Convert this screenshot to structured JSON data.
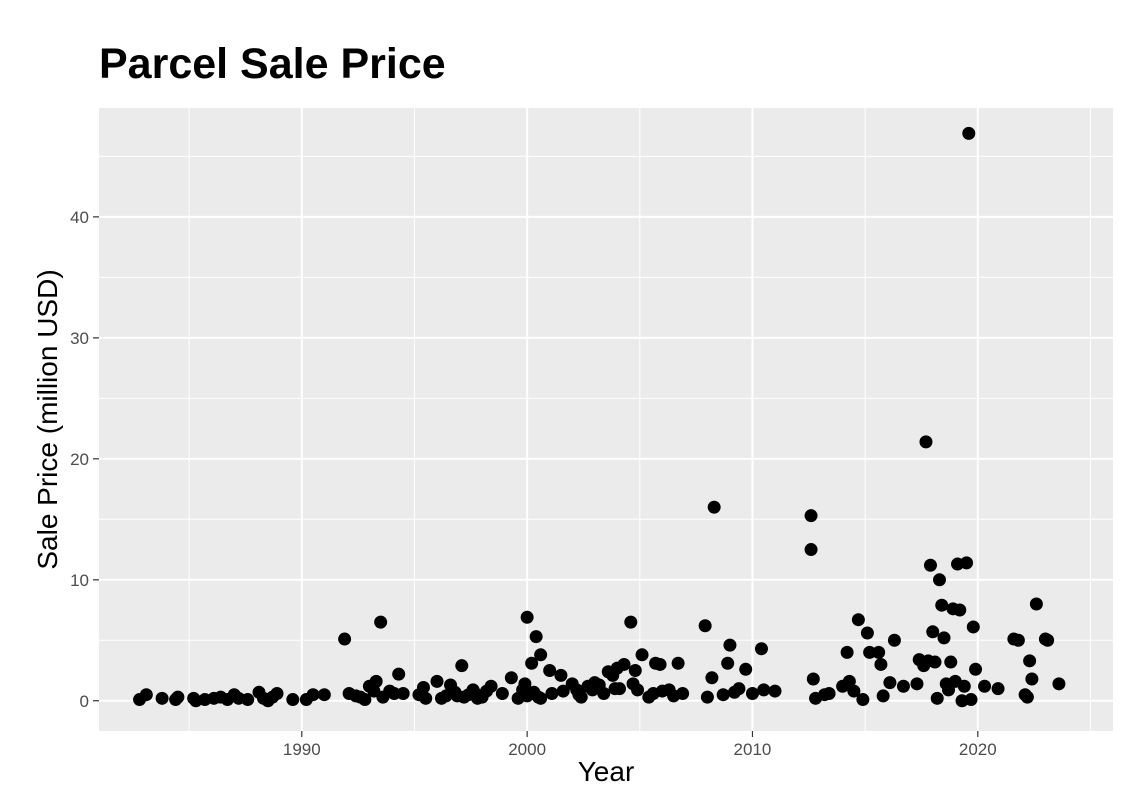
{
  "chart_data": {
    "type": "scatter",
    "title": "Parcel Sale Price",
    "xlabel": "Year",
    "ylabel": "Sale Price (million USD)",
    "xlim": [
      1981,
      2026
    ],
    "ylim": [
      -2.5,
      49
    ],
    "x_ticks": [
      1990,
      2000,
      2010,
      2020
    ],
    "y_ticks": [
      0,
      10,
      20,
      30,
      40
    ],
    "grid": true,
    "legend": "none",
    "point_color": "#000000",
    "panel_color": "#ebebeb",
    "grid_color": "#ffffff",
    "points": [
      {
        "x": 1982.8,
        "y": 0.1
      },
      {
        "x": 1983.1,
        "y": 0.5
      },
      {
        "x": 1983.8,
        "y": 0.2
      },
      {
        "x": 1984.4,
        "y": 0.1
      },
      {
        "x": 1984.5,
        "y": 0.3
      },
      {
        "x": 1985.2,
        "y": 0.2
      },
      {
        "x": 1985.3,
        "y": 0
      },
      {
        "x": 1985.7,
        "y": 0.1
      },
      {
        "x": 1986.1,
        "y": 0.2
      },
      {
        "x": 1986.4,
        "y": 0.3
      },
      {
        "x": 1986.7,
        "y": 0.1
      },
      {
        "x": 1987,
        "y": 0.5
      },
      {
        "x": 1987.2,
        "y": 0.2
      },
      {
        "x": 1987.6,
        "y": 0.1
      },
      {
        "x": 1988.1,
        "y": 0.7
      },
      {
        "x": 1988.3,
        "y": 0.2
      },
      {
        "x": 1988.5,
        "y": 0
      },
      {
        "x": 1988.7,
        "y": 0.3
      },
      {
        "x": 1988.9,
        "y": 0.6
      },
      {
        "x": 1989.6,
        "y": 0.1
      },
      {
        "x": 1990.2,
        "y": 0.1
      },
      {
        "x": 1990.5,
        "y": 0.5
      },
      {
        "x": 1991,
        "y": 0.5
      },
      {
        "x": 1991.9,
        "y": 5.1
      },
      {
        "x": 1992.1,
        "y": 0.6
      },
      {
        "x": 1992.4,
        "y": 0.4
      },
      {
        "x": 1992.6,
        "y": 0.3
      },
      {
        "x": 1992.8,
        "y": 0.1
      },
      {
        "x": 1993,
        "y": 1.2
      },
      {
        "x": 1993.2,
        "y": 0.8
      },
      {
        "x": 1993.3,
        "y": 1.6
      },
      {
        "x": 1993.5,
        "y": 6.5
      },
      {
        "x": 1993.6,
        "y": 0.3
      },
      {
        "x": 1993.9,
        "y": 0.8
      },
      {
        "x": 1994.1,
        "y": 0.6
      },
      {
        "x": 1994.3,
        "y": 2.2
      },
      {
        "x": 1994.5,
        "y": 0.6
      },
      {
        "x": 1995.2,
        "y": 0.5
      },
      {
        "x": 1995.4,
        "y": 1.1
      },
      {
        "x": 1995.5,
        "y": 0.2
      },
      {
        "x": 1996,
        "y": 1.6
      },
      {
        "x": 1996.2,
        "y": 0.2
      },
      {
        "x": 1996.4,
        "y": 0.4
      },
      {
        "x": 1996.6,
        "y": 1.3
      },
      {
        "x": 1996.8,
        "y": 0.7
      },
      {
        "x": 1996.9,
        "y": 0.4
      },
      {
        "x": 1997.1,
        "y": 2.9
      },
      {
        "x": 1997.2,
        "y": 0.3
      },
      {
        "x": 1997.4,
        "y": 0.5
      },
      {
        "x": 1997.6,
        "y": 0.9
      },
      {
        "x": 1997.7,
        "y": 0.6
      },
      {
        "x": 1997.8,
        "y": 0.2
      },
      {
        "x": 1998,
        "y": 0.3
      },
      {
        "x": 1998.2,
        "y": 0.8
      },
      {
        "x": 1998.4,
        "y": 1.2
      },
      {
        "x": 1998.9,
        "y": 0.6
      },
      {
        "x": 1999.3,
        "y": 1.9
      },
      {
        "x": 1999.6,
        "y": 0.2
      },
      {
        "x": 1999.8,
        "y": 0.9
      },
      {
        "x": 1999.9,
        "y": 1.4
      },
      {
        "x": 2000,
        "y": 0.4
      },
      {
        "x": 2000,
        "y": 6.9
      },
      {
        "x": 2000.2,
        "y": 3.1
      },
      {
        "x": 2000.3,
        "y": 0.7
      },
      {
        "x": 2000.4,
        "y": 5.3
      },
      {
        "x": 2000.5,
        "y": 0.3
      },
      {
        "x": 2000.6,
        "y": 0.2
      },
      {
        "x": 2000.6,
        "y": 3.8
      },
      {
        "x": 2001,
        "y": 2.5
      },
      {
        "x": 2001.1,
        "y": 0.6
      },
      {
        "x": 2001.5,
        "y": 2.1
      },
      {
        "x": 2001.6,
        "y": 0.8
      },
      {
        "x": 2002,
        "y": 1.4
      },
      {
        "x": 2002.2,
        "y": 0.9
      },
      {
        "x": 2002.3,
        "y": 0.5
      },
      {
        "x": 2002.4,
        "y": 0.3
      },
      {
        "x": 2002.7,
        "y": 1.2
      },
      {
        "x": 2002.9,
        "y": 0.9
      },
      {
        "x": 2003,
        "y": 1.5
      },
      {
        "x": 2003.2,
        "y": 1.3
      },
      {
        "x": 2003.4,
        "y": 0.6
      },
      {
        "x": 2003.6,
        "y": 2.4
      },
      {
        "x": 2003.8,
        "y": 2.1
      },
      {
        "x": 2003.9,
        "y": 1
      },
      {
        "x": 2004,
        "y": 2.7
      },
      {
        "x": 2004.1,
        "y": 1
      },
      {
        "x": 2004.3,
        "y": 3
      },
      {
        "x": 2004.6,
        "y": 6.5
      },
      {
        "x": 2004.7,
        "y": 1.4
      },
      {
        "x": 2004.8,
        "y": 2.5
      },
      {
        "x": 2004.9,
        "y": 0.9
      },
      {
        "x": 2005.1,
        "y": 3.8
      },
      {
        "x": 2005.4,
        "y": 0.3
      },
      {
        "x": 2005.6,
        "y": 0.6
      },
      {
        "x": 2005.7,
        "y": 3.1
      },
      {
        "x": 2005.9,
        "y": 3
      },
      {
        "x": 2006,
        "y": 0.8
      },
      {
        "x": 2006.3,
        "y": 0.9
      },
      {
        "x": 2006.5,
        "y": 0.4
      },
      {
        "x": 2006.7,
        "y": 3.1
      },
      {
        "x": 2006.9,
        "y": 0.6
      },
      {
        "x": 2007.9,
        "y": 6.2
      },
      {
        "x": 2008,
        "y": 0.3
      },
      {
        "x": 2008.2,
        "y": 1.9
      },
      {
        "x": 2008.3,
        "y": 16
      },
      {
        "x": 2008.7,
        "y": 0.5
      },
      {
        "x": 2008.9,
        "y": 3.1
      },
      {
        "x": 2009,
        "y": 4.6
      },
      {
        "x": 2009.2,
        "y": 0.7
      },
      {
        "x": 2009.4,
        "y": 1
      },
      {
        "x": 2009.7,
        "y": 2.6
      },
      {
        "x": 2010,
        "y": 0.6
      },
      {
        "x": 2010.4,
        "y": 4.3
      },
      {
        "x": 2010.5,
        "y": 0.9
      },
      {
        "x": 2011,
        "y": 0.8
      },
      {
        "x": 2012.6,
        "y": 15.3
      },
      {
        "x": 2012.6,
        "y": 12.5
      },
      {
        "x": 2012.7,
        "y": 1.8
      },
      {
        "x": 2012.8,
        "y": 0.2
      },
      {
        "x": 2013.2,
        "y": 0.5
      },
      {
        "x": 2013.4,
        "y": 0.6
      },
      {
        "x": 2014,
        "y": 1.2
      },
      {
        "x": 2014.2,
        "y": 4
      },
      {
        "x": 2014.3,
        "y": 1.6
      },
      {
        "x": 2014.5,
        "y": 0.8
      },
      {
        "x": 2014.7,
        "y": 6.7
      },
      {
        "x": 2014.9,
        "y": 0.1
      },
      {
        "x": 2015.1,
        "y": 5.6
      },
      {
        "x": 2015.2,
        "y": 4
      },
      {
        "x": 2015.6,
        "y": 4
      },
      {
        "x": 2015.7,
        "y": 3
      },
      {
        "x": 2015.8,
        "y": 0.4
      },
      {
        "x": 2016.1,
        "y": 1.5
      },
      {
        "x": 2016.3,
        "y": 5
      },
      {
        "x": 2016.7,
        "y": 1.2
      },
      {
        "x": 2017.3,
        "y": 1.4
      },
      {
        "x": 2017.4,
        "y": 3.4
      },
      {
        "x": 2017.6,
        "y": 2.9
      },
      {
        "x": 2017.7,
        "y": 21.4
      },
      {
        "x": 2017.8,
        "y": 3.3
      },
      {
        "x": 2017.9,
        "y": 11.2
      },
      {
        "x": 2018,
        "y": 5.7
      },
      {
        "x": 2018.1,
        "y": 3.2
      },
      {
        "x": 2018.2,
        "y": 0.2
      },
      {
        "x": 2018.3,
        "y": 10
      },
      {
        "x": 2018.4,
        "y": 7.9
      },
      {
        "x": 2018.5,
        "y": 5.2
      },
      {
        "x": 2018.6,
        "y": 1.4
      },
      {
        "x": 2018.7,
        "y": 0.9
      },
      {
        "x": 2018.8,
        "y": 3.2
      },
      {
        "x": 2018.9,
        "y": 7.6
      },
      {
        "x": 2019,
        "y": 1.6
      },
      {
        "x": 2019.1,
        "y": 11.3
      },
      {
        "x": 2019.2,
        "y": 7.5
      },
      {
        "x": 2019.3,
        "y": 0
      },
      {
        "x": 2019.4,
        "y": 1.2
      },
      {
        "x": 2019.5,
        "y": 11.4
      },
      {
        "x": 2019.6,
        "y": 46.9
      },
      {
        "x": 2019.7,
        "y": 0.1
      },
      {
        "x": 2019.8,
        "y": 6.1
      },
      {
        "x": 2019.9,
        "y": 2.6
      },
      {
        "x": 2020.3,
        "y": 1.2
      },
      {
        "x": 2020.9,
        "y": 1
      },
      {
        "x": 2021.6,
        "y": 5.1
      },
      {
        "x": 2021.8,
        "y": 5
      },
      {
        "x": 2022.1,
        "y": 0.5
      },
      {
        "x": 2022.2,
        "y": 0.3
      },
      {
        "x": 2022.3,
        "y": 3.3
      },
      {
        "x": 2022.4,
        "y": 1.8
      },
      {
        "x": 2022.6,
        "y": 8
      },
      {
        "x": 2023.0,
        "y": 5.1
      },
      {
        "x": 2023.1,
        "y": 5
      },
      {
        "x": 2023.6,
        "y": 1.4
      }
    ]
  }
}
